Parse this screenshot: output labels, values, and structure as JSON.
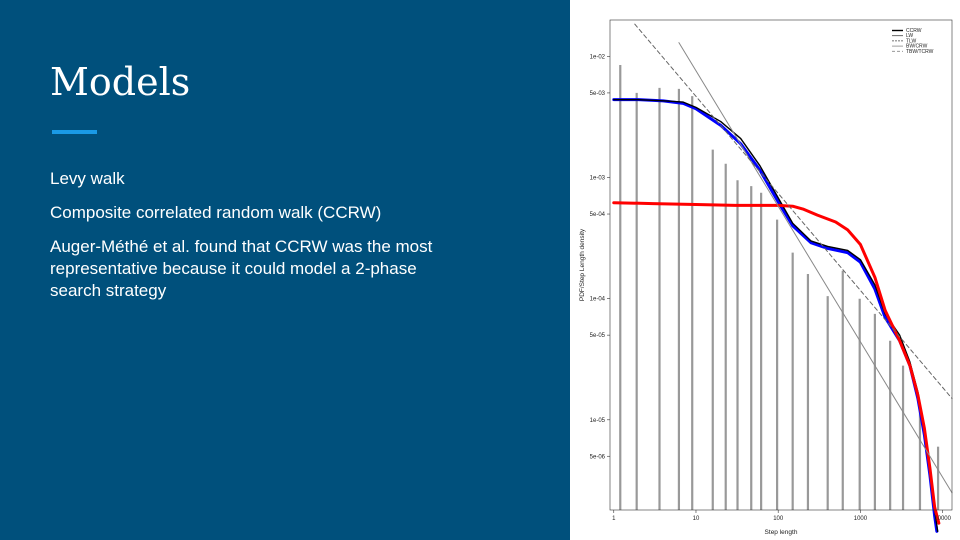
{
  "slide": {
    "title": "Models",
    "bullets": [
      "Levy walk",
      "Composite correlated random walk (CCRW)",
      "Auger-Méthé et al. found that CCRW was the most representative because it could model a 2-phase search strategy"
    ]
  },
  "colors": {
    "panel_bg": "#00507c",
    "accent": "#1a9ae6",
    "ccrw_fit": "#0000ff",
    "tcrw_fit": "#ff0000",
    "histogram": "#999999"
  },
  "chart_data": {
    "type": "line",
    "xlabel": "Step length",
    "ylabel": "PDF/Step Length density",
    "x_scale": "log",
    "y_scale": "log",
    "xlim": [
      0.9,
      13000
    ],
    "ylim": [
      1.8e-06,
      0.02
    ],
    "x_ticks": [
      {
        "value": 1,
        "label": "1"
      },
      {
        "value": 10,
        "label": "10"
      },
      {
        "value": 100,
        "label": "100"
      },
      {
        "value": 1000,
        "label": "1000"
      },
      {
        "value": 10000,
        "label": "10000"
      }
    ],
    "y_ticks": [
      {
        "value": 0.01,
        "label": "1e-02"
      },
      {
        "value": 0.005,
        "label": "5e-03"
      },
      {
        "value": 0.001,
        "label": "1e-03"
      },
      {
        "value": 0.0005,
        "label": "5e-04"
      },
      {
        "value": 0.0001,
        "label": "1e-04"
      },
      {
        "value": 5e-05,
        "label": "5e-05"
      },
      {
        "value": 1e-05,
        "label": "1e-05"
      },
      {
        "value": 5e-06,
        "label": "5e-06"
      }
    ],
    "grid": false,
    "legend_placement": "top-right",
    "legend": [
      "CCRW",
      "LW",
      "TLW",
      "BW/CRW",
      "TBW/TCRW"
    ],
    "histogram": {
      "x": [
        1.2,
        1.9,
        3.6,
        6.2,
        9.0,
        16,
        23,
        32,
        47,
        62,
        97,
        150,
        230,
        400,
        610,
        980,
        1500,
        2300,
        3300,
        5300,
        8800
      ],
      "y": [
        0.0085,
        0.005,
        0.0055,
        0.0054,
        0.0047,
        0.0017,
        0.0013,
        0.00095,
        0.00085,
        0.00075,
        0.00045,
        0.00024,
        0.00016,
        0.000105,
        0.00017,
        0.0001,
        7.5e-05,
        4.5e-05,
        2.8e-05,
        1.2e-05,
        6e-06
      ]
    },
    "series": [
      {
        "x": [
          1,
          2,
          4,
          7,
          10,
          20,
          35,
          60,
          100,
          150,
          250,
          400,
          700,
          1000,
          1500,
          2000,
          3000,
          4000,
          5000,
          6000,
          7000,
          8000,
          8500
        ],
        "y": [
          0.0044,
          0.0044,
          0.0043,
          0.0041,
          0.0037,
          0.0027,
          0.0019,
          0.00115,
          0.00063,
          0.0004,
          0.00029,
          0.00026,
          0.00024,
          0.0002,
          0.00012,
          7e-05,
          4.5e-05,
          2.8e-05,
          1.5e-05,
          7.5e-06,
          3.5e-06,
          1.6e-06,
          1.2e-06
        ],
        "color": "#0000ff",
        "width": 3
      },
      {
        "x": [
          1,
          2,
          4,
          7,
          10,
          20,
          35,
          60,
          100,
          150,
          250,
          400,
          700,
          1000,
          1500,
          2000,
          3000,
          4000,
          5000,
          6000,
          7000,
          8000,
          8700
        ],
        "y": [
          0.0044,
          0.0044,
          0.0043,
          0.0042,
          0.0038,
          0.0029,
          0.0021,
          0.00125,
          0.00068,
          0.00042,
          0.0003,
          0.00027,
          0.00025,
          0.00021,
          0.00013,
          7.5e-05,
          5e-05,
          3e-05,
          1.7e-05,
          8.5e-06,
          4e-06,
          1.8e-06,
          1.2e-06
        ],
        "color": "#000000",
        "width": 1.4
      },
      {
        "x": [
          1,
          3,
          10,
          30,
          100,
          150,
          200,
          300,
          500,
          700,
          1000,
          1500,
          2000,
          3000,
          4000,
          5000,
          6000,
          7000,
          8000,
          9000
        ],
        "y": [
          0.00062,
          0.00061,
          0.0006,
          0.00059,
          0.00059,
          0.00058,
          0.00055,
          0.00049,
          0.00043,
          0.00037,
          0.00028,
          0.00015,
          8e-05,
          4.5e-05,
          2.8e-05,
          1.6e-05,
          8.5e-06,
          4e-06,
          1.9e-06,
          1.4e-06
        ],
        "color": "#ff0000",
        "width": 3
      },
      {
        "x": [
          6.2,
          13000
        ],
        "y": [
          0.013,
          2.5e-06
        ],
        "color": "#888888",
        "width": 1
      },
      {
        "x": [
          1.8,
          13000
        ],
        "y": [
          0.0185,
          1.5e-05
        ],
        "color": "#666666",
        "width": 1,
        "dash": true
      }
    ]
  }
}
